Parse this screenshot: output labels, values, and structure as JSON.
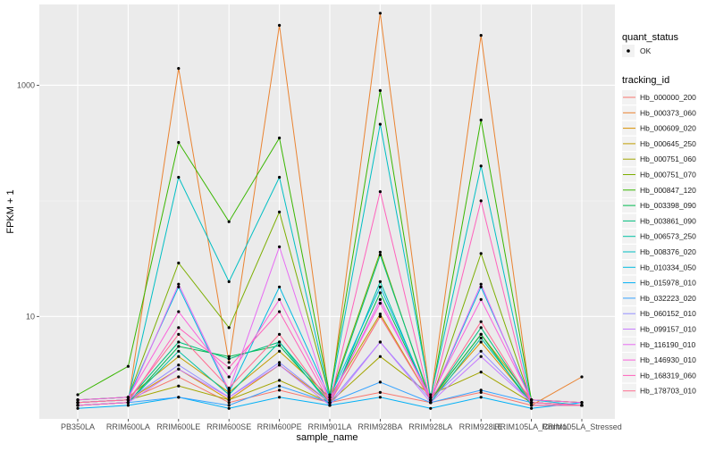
{
  "chart_data": {
    "type": "line",
    "xlabel": "sample_name",
    "ylabel": "FPKM + 1",
    "y_scale": "log10",
    "ylim": [
      1.3,
      5000
    ],
    "y_ticks": [
      10,
      1000
    ],
    "y_tick_labels": [
      "10",
      "1000"
    ],
    "categories": [
      "PB350LA",
      "RRIM600LA",
      "RRIM600LE",
      "RRIM600SE",
      "RRIM600PE",
      "RRIM901LA",
      "RRIM928BA",
      "RRIM928LA",
      "RRIM928LE",
      "RRIM105LA_Control",
      "RRIM105LA_Stressed"
    ],
    "grid": true,
    "legend_position": "right",
    "legend_shape": {
      "title": "quant_status",
      "items": [
        {
          "label": "OK",
          "color": "#000000"
        }
      ]
    },
    "legend_color": {
      "title": "tracking_id"
    },
    "series": [
      {
        "name": "Hb_000000_200",
        "color": "#F8766D",
        "values": [
          1.8,
          1.9,
          3.0,
          1.8,
          2.3,
          1.8,
          2.2,
          1.8,
          2.2,
          1.7,
          1.7
        ]
      },
      {
        "name": "Hb_000373_060",
        "color": "#EA8331",
        "values": [
          1.7,
          1.8,
          1400,
          4.0,
          3300,
          1.8,
          4200,
          1.9,
          2700,
          1.7,
          3.0
        ]
      },
      {
        "name": "Hb_000609_020",
        "color": "#D89000",
        "values": [
          1.8,
          1.9,
          3.5,
          1.9,
          3.8,
          1.8,
          10,
          1.9,
          6,
          1.8,
          1.7
        ]
      },
      {
        "name": "Hb_000645_250",
        "color": "#C09B00",
        "values": [
          1.9,
          2.0,
          4.5,
          2.2,
          5,
          2.0,
          10.5,
          1.9,
          7,
          1.9,
          1.8
        ]
      },
      {
        "name": "Hb_000751_060",
        "color": "#A3A500",
        "values": [
          1.8,
          1.9,
          2.5,
          1.9,
          2.8,
          1.8,
          4.5,
          2.1,
          3.3,
          1.8,
          1.7
        ]
      },
      {
        "name": "Hb_000751_070",
        "color": "#7CAE00",
        "values": [
          1.9,
          2.0,
          29,
          8,
          80,
          2.0,
          36,
          1.8,
          35,
          1.8,
          1.7
        ]
      },
      {
        "name": "Hb_000847_120",
        "color": "#39B600",
        "values": [
          2.1,
          3.7,
          320,
          66,
          350,
          2.1,
          900,
          1.9,
          500,
          1.9,
          1.8
        ]
      },
      {
        "name": "Hb_003398_090",
        "color": "#00BB4E",
        "values": [
          1.7,
          1.8,
          5.5,
          4.5,
          5.6,
          1.8,
          16,
          1.9,
          7,
          1.7,
          1.7
        ]
      },
      {
        "name": "Hb_003861_090",
        "color": "#00BF7D",
        "values": [
          1.8,
          1.9,
          6,
          4.3,
          6,
          1.9,
          34,
          1.9,
          8,
          1.8,
          1.7
        ]
      },
      {
        "name": "Hb_006573_250",
        "color": "#00C1A3",
        "values": [
          1.7,
          1.8,
          5,
          2.1,
          6,
          1.7,
          20,
          1.8,
          6.5,
          1.8,
          1.7
        ]
      },
      {
        "name": "Hb_008376_020",
        "color": "#00BFC4",
        "values": [
          1.8,
          1.9,
          160,
          20,
          160,
          2.0,
          460,
          2.0,
          200,
          1.8,
          1.7
        ]
      },
      {
        "name": "Hb_010334_050",
        "color": "#00BAE0",
        "values": [
          1.9,
          2.0,
          18,
          2.2,
          18,
          2.0,
          18,
          1.9,
          18,
          1.9,
          1.7
        ]
      },
      {
        "name": "Hb_015978_010",
        "color": "#00B0F6",
        "values": [
          1.6,
          1.7,
          2.0,
          1.6,
          2.0,
          1.7,
          2.0,
          1.6,
          2.0,
          1.6,
          1.8
        ]
      },
      {
        "name": "Hb_032223_020",
        "color": "#35A2FF",
        "values": [
          1.7,
          1.8,
          2.0,
          1.7,
          2.5,
          1.8,
          2.7,
          1.8,
          2.3,
          1.8,
          1.7
        ]
      },
      {
        "name": "Hb_060152_010",
        "color": "#9590FF",
        "values": [
          1.8,
          1.9,
          3.8,
          2.0,
          4,
          1.8,
          6,
          1.9,
          5,
          1.8,
          1.7
        ]
      },
      {
        "name": "Hb_099157_010",
        "color": "#C77CFF",
        "values": [
          1.7,
          1.8,
          3.5,
          2.0,
          3.8,
          1.7,
          6,
          1.8,
          4.5,
          1.8,
          1.7
        ]
      },
      {
        "name": "Hb_116190_010",
        "color": "#E76BF3",
        "values": [
          1.8,
          1.9,
          19,
          2.3,
          40,
          1.8,
          14,
          1.9,
          19,
          1.8,
          1.7
        ]
      },
      {
        "name": "Hb_146930_010",
        "color": "#FA62DB",
        "values": [
          1.9,
          2.0,
          11,
          3.0,
          14,
          1.9,
          13,
          2.0,
          14,
          1.9,
          1.8
        ]
      },
      {
        "name": "Hb_168319_060",
        "color": "#FF62BC",
        "values": [
          1.7,
          1.8,
          8,
          3.6,
          11,
          1.8,
          120,
          1.8,
          100,
          1.7,
          1.7
        ]
      },
      {
        "name": "Hb_178703_010",
        "color": "#FF6C91",
        "values": [
          1.8,
          1.9,
          7,
          2.4,
          7,
          1.8,
          10,
          1.9,
          9,
          1.8,
          1.7
        ]
      }
    ]
  }
}
